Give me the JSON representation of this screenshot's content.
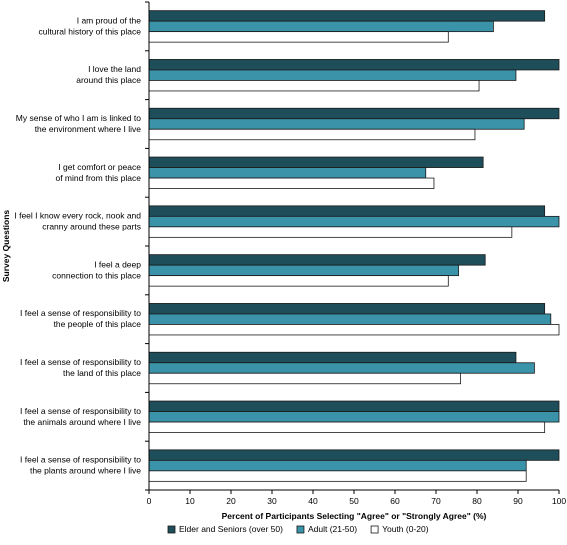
{
  "chart_data": {
    "type": "bar",
    "orientation": "horizontal",
    "categories": [
      [
        "I am proud of the",
        "cultural history of this place"
      ],
      [
        "I love the land",
        "around this place"
      ],
      [
        "My sense of who I am is linked to",
        "the environment where I live"
      ],
      [
        "I get comfort or peace",
        "of mind from this place"
      ],
      [
        "I feel I know every rock, nook and",
        "cranny around these parts"
      ],
      [
        "I feel a deep",
        "connection to this place"
      ],
      [
        "I feel a sense of responsibility to",
        "the people of this place"
      ],
      [
        "I feel a sense of responsibility to",
        "the land of this place"
      ],
      [
        "I feel a sense of responsibility to",
        "the animals around where I live"
      ],
      [
        "I feel a sense of responsibility to",
        "the plants around where I live"
      ]
    ],
    "series": [
      {
        "name": "Elder and Seniors (over 50)",
        "color": "#1d4e5a",
        "values": [
          96.5,
          100,
          100,
          81.5,
          96.5,
          82,
          96.5,
          89.5,
          100,
          100
        ]
      },
      {
        "name": "Adult (21-50)",
        "color": "#3a93a8",
        "values": [
          84,
          89.5,
          91.5,
          67.5,
          100,
          75.5,
          98,
          94,
          100,
          92
        ]
      },
      {
        "name": "Youth (0-20)",
        "color": "#ffffff",
        "values": [
          73,
          80.5,
          79.5,
          69.5,
          88.5,
          73,
          100,
          76,
          96.5,
          92
        ]
      }
    ],
    "xlabel": "Percent of Participants Selecting \"Agree\" or \"Strongly Agree\" (%)",
    "ylabel": "Survey Questions",
    "xlim": [
      0,
      100
    ],
    "xticks": [
      0,
      10,
      20,
      30,
      40,
      50,
      60,
      70,
      80,
      90,
      100
    ],
    "grid": false,
    "legend_position": "bottom"
  }
}
